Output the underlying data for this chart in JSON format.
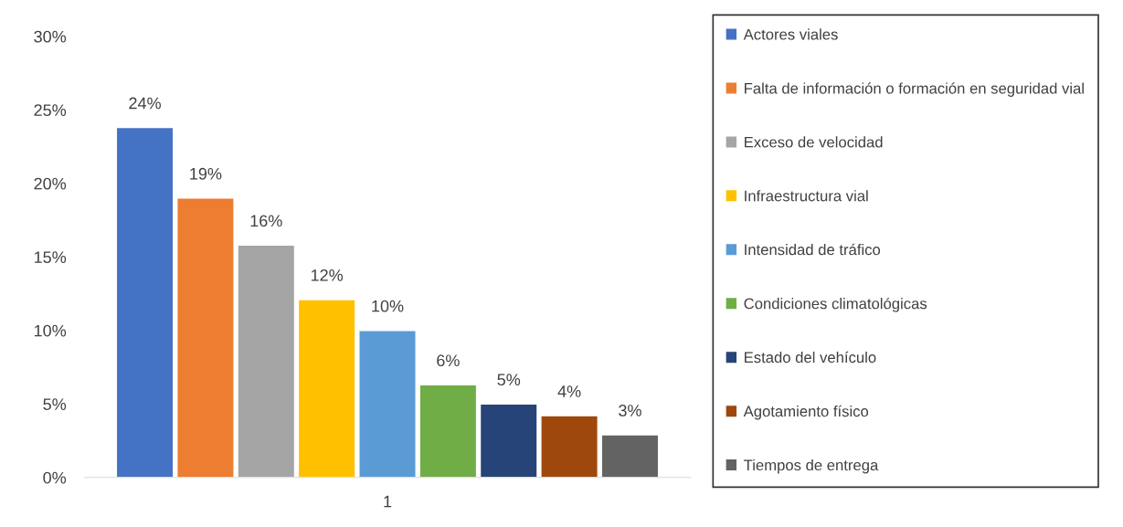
{
  "chart_data": {
    "type": "bar",
    "categories": [
      "1"
    ],
    "series": [
      {
        "name": "Actores viales",
        "color": "#4472c4",
        "values": [
          23.8
        ],
        "value_labels": [
          "24%"
        ]
      },
      {
        "name": "Falta de información o formación en seguridad vial",
        "color": "#ed7d31",
        "values": [
          19.0
        ],
        "value_labels": [
          "19%"
        ]
      },
      {
        "name": "Exceso de velocidad",
        "color": "#a5a5a5",
        "values": [
          15.8
        ],
        "value_labels": [
          "16%"
        ]
      },
      {
        "name": "Infraestructura vial",
        "color": "#ffc000",
        "values": [
          12.1
        ],
        "value_labels": [
          "12%"
        ]
      },
      {
        "name": "Intensidad de tráfico",
        "color": "#5b9bd5",
        "values": [
          10.0
        ],
        "value_labels": [
          "10%"
        ]
      },
      {
        "name": "Condiciones climatológicas",
        "color": "#70ad47",
        "values": [
          6.3
        ],
        "value_labels": [
          "6%"
        ]
      },
      {
        "name": "Estado del vehículo",
        "color": "#264478",
        "values": [
          5.0
        ],
        "value_labels": [
          "5%"
        ]
      },
      {
        "name": "Agotamiento físico",
        "color": "#9e480e",
        "values": [
          4.2
        ],
        "value_labels": [
          "4%"
        ]
      },
      {
        "name": "Tiempos de entrega",
        "color": "#636363",
        "values": [
          2.9
        ],
        "value_labels": [
          "3%"
        ]
      }
    ],
    "ylim": [
      0,
      30
    ],
    "yticks": [
      {
        "value": 0,
        "label": "0%"
      },
      {
        "value": 5,
        "label": "5%"
      },
      {
        "value": 10,
        "label": "10%"
      },
      {
        "value": 15,
        "label": "15%"
      },
      {
        "value": 20,
        "label": "20%"
      },
      {
        "value": 25,
        "label": "25%"
      },
      {
        "value": 30,
        "label": "30%"
      }
    ],
    "grid": false,
    "legend": "right"
  }
}
